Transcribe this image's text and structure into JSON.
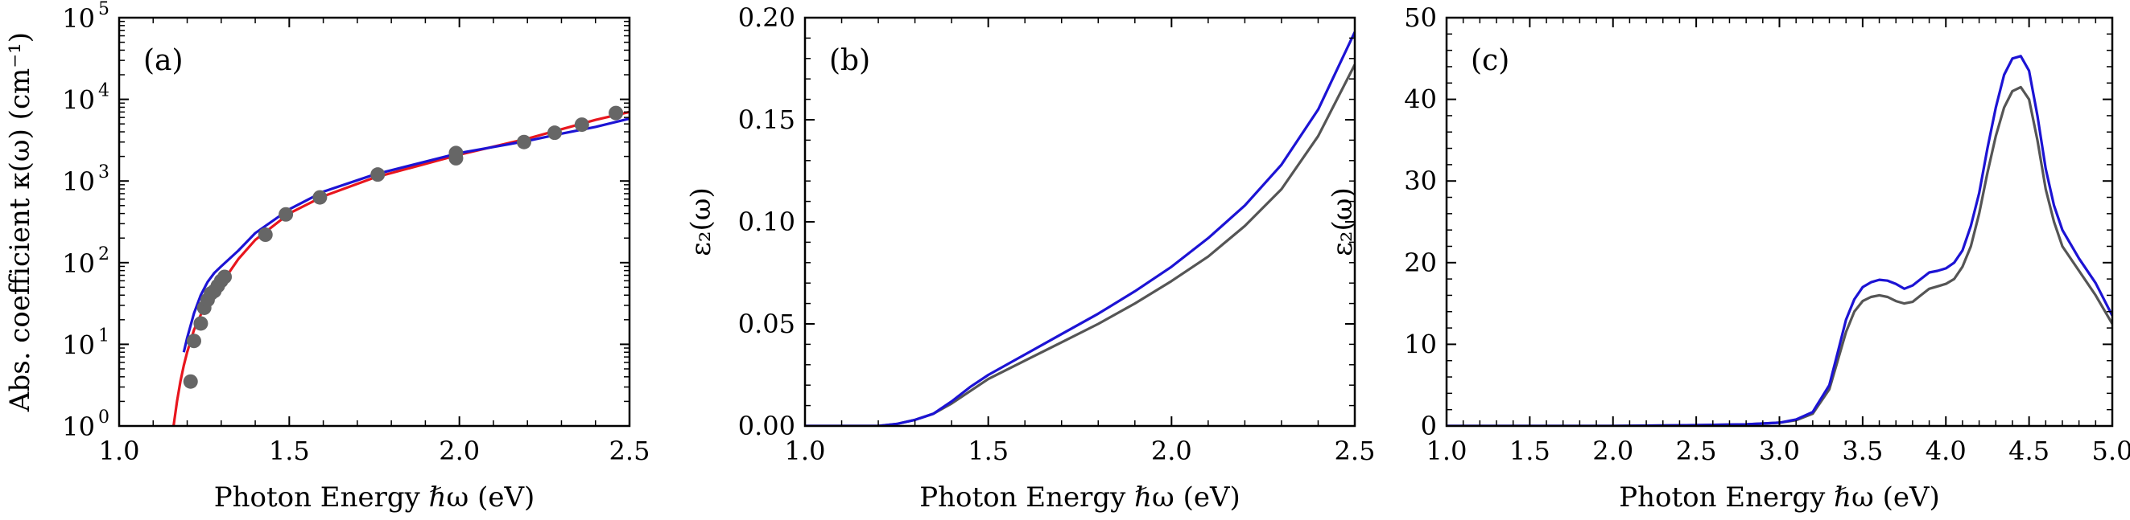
{
  "chart_data": [
    {
      "id": "a",
      "type": "line",
      "panel_label": "(a)",
      "xlabel": "Photon Energy ℏω (eV)",
      "ylabel": "Abs. coefficient κ(ω) (cm⁻¹)",
      "yscale": "log",
      "xlim": [
        1.0,
        2.5
      ],
      "ylim": [
        1,
        100000
      ],
      "xticks": [
        1.0,
        1.5,
        2.0,
        2.5
      ],
      "xtick_labels": [
        "1.0",
        "1.5",
        "2.0",
        "2.5"
      ],
      "yticks": [
        1,
        10,
        100,
        1000,
        10000,
        100000
      ],
      "ytick_labels": [
        {
          "base": "10",
          "exp": "0"
        },
        {
          "base": "10",
          "exp": "1"
        },
        {
          "base": "10",
          "exp": "2"
        },
        {
          "base": "10",
          "exp": "3"
        },
        {
          "base": "10",
          "exp": "4"
        },
        {
          "base": "10",
          "exp": "5"
        }
      ],
      "series": [
        {
          "name": "red-curve",
          "kind": "line",
          "color": "#e8161e",
          "x": [
            1.16,
            1.17,
            1.18,
            1.19,
            1.2,
            1.21,
            1.22,
            1.24,
            1.26,
            1.28,
            1.3,
            1.35,
            1.4,
            1.5,
            1.6,
            1.75,
            2.0,
            2.2,
            2.3,
            2.4,
            2.5
          ],
          "y": [
            1.0,
            2.0,
            3.5,
            5.5,
            8.0,
            11,
            15,
            23,
            33,
            43,
            55,
            110,
            190,
            400,
            650,
            1100,
            2100,
            3300,
            4300,
            5600,
            7000
          ]
        },
        {
          "name": "blue-curve",
          "kind": "line",
          "color": "#1c13d4",
          "x": [
            1.19,
            1.2,
            1.22,
            1.24,
            1.26,
            1.28,
            1.3,
            1.35,
            1.4,
            1.5,
            1.6,
            1.75,
            2.0,
            2.2,
            2.3,
            2.4,
            2.5
          ],
          "y": [
            8,
            12,
            24,
            40,
            58,
            75,
            90,
            140,
            230,
            450,
            740,
            1200,
            2200,
            3100,
            3800,
            4600,
            5800
          ]
        },
        {
          "name": "gray-data-points",
          "kind": "scatter",
          "color": "#666666",
          "x": [
            1.21,
            1.22,
            1.24,
            1.25,
            1.26,
            1.27,
            1.28,
            1.29,
            1.3,
            1.31,
            1.43,
            1.49,
            1.59,
            1.76,
            1.99,
            1.99,
            2.19,
            2.28,
            2.36,
            2.46
          ],
          "y": [
            3.5,
            11,
            18,
            28,
            35,
            42,
            45,
            52,
            60,
            67,
            220,
            390,
            630,
            1200,
            1900,
            2200,
            3000,
            3900,
            4900,
            6800
          ]
        }
      ]
    },
    {
      "id": "b",
      "type": "line",
      "panel_label": "(b)",
      "xlabel": "Photon Energy ℏω (eV)",
      "ylabel": "ε₂(ω)",
      "yscale": "linear",
      "xlim": [
        1.0,
        2.5
      ],
      "ylim": [
        0,
        0.2
      ],
      "xticks": [
        1.0,
        1.5,
        2.0,
        2.5
      ],
      "xtick_labels": [
        "1.0",
        "1.5",
        "2.0",
        "2.5"
      ],
      "yticks": [
        0,
        0.05,
        0.1,
        0.15,
        0.2
      ],
      "ytick_labels": [
        "0.00",
        "0.05",
        "0.10",
        "0.15",
        "0.20"
      ],
      "series": [
        {
          "name": "gray-curve",
          "kind": "line",
          "color": "#555555",
          "x": [
            1.0,
            1.1,
            1.2,
            1.25,
            1.3,
            1.35,
            1.4,
            1.45,
            1.5,
            1.6,
            1.7,
            1.8,
            1.9,
            2.0,
            2.1,
            2.2,
            2.3,
            2.4,
            2.5
          ],
          "y": [
            0,
            0,
            0,
            0.001,
            0.003,
            0.006,
            0.011,
            0.017,
            0.023,
            0.032,
            0.041,
            0.05,
            0.06,
            0.071,
            0.083,
            0.098,
            0.116,
            0.142,
            0.177
          ]
        },
        {
          "name": "blue-curve",
          "kind": "line",
          "color": "#1c13d4",
          "x": [
            1.0,
            1.1,
            1.2,
            1.25,
            1.3,
            1.35,
            1.4,
            1.45,
            1.5,
            1.6,
            1.7,
            1.8,
            1.9,
            2.0,
            2.1,
            2.2,
            2.3,
            2.4,
            2.5
          ],
          "y": [
            0,
            0,
            0,
            0.001,
            0.003,
            0.006,
            0.012,
            0.019,
            0.025,
            0.035,
            0.045,
            0.055,
            0.066,
            0.078,
            0.092,
            0.108,
            0.128,
            0.155,
            0.193
          ]
        }
      ]
    },
    {
      "id": "c",
      "type": "line",
      "panel_label": "(c)",
      "xlabel": "Photon Energy ℏω (eV)",
      "ylabel": "ε₂(ω)",
      "yscale": "linear",
      "xlim": [
        1.0,
        5.0
      ],
      "ylim": [
        0,
        50
      ],
      "xticks": [
        1.0,
        1.5,
        2.0,
        2.5,
        3.0,
        3.5,
        4.0,
        4.5,
        5.0
      ],
      "xtick_labels": [
        "1.0",
        "1.5",
        "2.0",
        "2.5",
        "3.0",
        "3.5",
        "4.0",
        "4.5",
        "5.0"
      ],
      "yticks": [
        0,
        10,
        20,
        30,
        40,
        50
      ],
      "ytick_labels": [
        "0",
        "10",
        "20",
        "30",
        "40",
        "50"
      ],
      "series": [
        {
          "name": "gray-curve",
          "kind": "line",
          "color": "#555555",
          "x": [
            1.0,
            1.5,
            2.0,
            2.5,
            2.8,
            3.0,
            3.1,
            3.2,
            3.3,
            3.35,
            3.4,
            3.45,
            3.5,
            3.55,
            3.6,
            3.65,
            3.7,
            3.75,
            3.8,
            3.85,
            3.9,
            3.95,
            4.0,
            4.05,
            4.1,
            4.15,
            4.2,
            4.25,
            4.3,
            4.35,
            4.4,
            4.45,
            4.5,
            4.55,
            4.6,
            4.65,
            4.7,
            4.8,
            4.9,
            5.0
          ],
          "y": [
            0,
            0,
            0,
            0.1,
            0.2,
            0.4,
            0.7,
            1.5,
            4.5,
            8,
            11.5,
            14,
            15.3,
            15.8,
            16,
            15.8,
            15.3,
            15,
            15.2,
            16,
            16.8,
            17.1,
            17.4,
            18,
            19.5,
            22,
            26,
            31,
            35.5,
            39,
            41,
            41.5,
            40,
            35,
            29,
            25,
            22,
            19,
            16,
            12.5
          ]
        },
        {
          "name": "blue-curve",
          "kind": "line",
          "color": "#1c13d4",
          "x": [
            1.0,
            1.5,
            2.0,
            2.5,
            2.8,
            3.0,
            3.1,
            3.2,
            3.3,
            3.35,
            3.4,
            3.45,
            3.5,
            3.55,
            3.6,
            3.65,
            3.7,
            3.75,
            3.8,
            3.85,
            3.9,
            3.95,
            4.0,
            4.05,
            4.1,
            4.15,
            4.2,
            4.25,
            4.3,
            4.35,
            4.4,
            4.45,
            4.5,
            4.55,
            4.6,
            4.65,
            4.7,
            4.8,
            4.9,
            5.0
          ],
          "y": [
            0,
            0,
            0,
            0.1,
            0.2,
            0.4,
            0.8,
            1.7,
            5,
            9,
            13,
            15.5,
            17,
            17.6,
            17.9,
            17.8,
            17.4,
            16.8,
            17.2,
            18,
            18.8,
            19,
            19.3,
            20,
            21.5,
            24.5,
            28.5,
            34,
            39,
            43,
            45,
            45.3,
            43.5,
            38,
            31.5,
            27,
            24,
            20.5,
            17.5,
            13.5
          ]
        }
      ]
    }
  ]
}
